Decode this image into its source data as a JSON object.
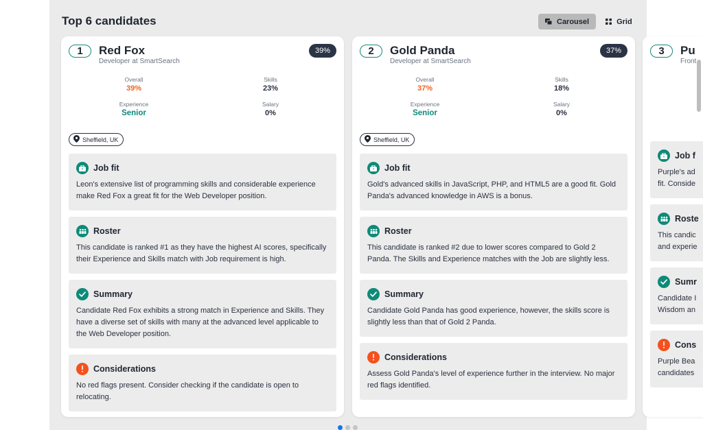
{
  "header": {
    "title": "Top 6 candidates",
    "view_carousel": "Carousel",
    "view_grid": "Grid"
  },
  "candidates": [
    {
      "rank": "1",
      "name": "Red Fox",
      "role": "Developer at SmartSearch",
      "score": "39%",
      "overall_label": "Overall",
      "overall": "39%",
      "skills_label": "Skills",
      "skills": "23%",
      "experience_label": "Experience",
      "experience": "Senior",
      "salary_label": "Salary",
      "salary": "0%",
      "location": "Sheffield, UK",
      "sections": [
        {
          "title": "Job fit",
          "icon": "briefcase-icon",
          "text": "Leon's extensive list of programming skills and considerable experience make Red Fox a great fit for the Web Developer position."
        },
        {
          "title": "Roster",
          "icon": "roster-icon",
          "text": "This candidate is ranked #1 as they have the highest AI scores, specifically their Experience and Skills match with Job requirement is high."
        },
        {
          "title": "Summary",
          "icon": "check-icon",
          "text": "Candidate Red Fox exhibits a strong match in Experience and Skills. They have a diverse set of skills with many at the advanced level applicable to the Web Developer position."
        },
        {
          "title": "Considerations",
          "icon": "alert-icon",
          "text": "No red flags present. Consider checking if the candidate is open to relocating."
        }
      ]
    },
    {
      "rank": "2",
      "name": "Gold Panda",
      "role": "Developer at SmartSearch",
      "score": "37%",
      "overall_label": "Overall",
      "overall": "37%",
      "skills_label": "Skills",
      "skills": "18%",
      "experience_label": "Experience",
      "experience": "Senior",
      "salary_label": "Salary",
      "salary": "0%",
      "location": "Sheffield, UK",
      "sections": [
        {
          "title": "Job fit",
          "icon": "briefcase-icon",
          "text": "Gold's advanced skills in JavaScript, PHP, and HTML5 are a good fit. Gold Panda's advanced knowledge in AWS is a bonus."
        },
        {
          "title": "Roster",
          "icon": "roster-icon",
          "text": "This candidate is ranked #2 due to lower scores compared to Gold 2 Panda. The Skills and Experience matches with the Job are slightly less."
        },
        {
          "title": "Summary",
          "icon": "check-icon",
          "text": "Candidate Gold Panda has good experience, however, the skills score is slightly less than that of Gold 2 Panda."
        },
        {
          "title": "Considerations",
          "icon": "alert-icon",
          "text": "Assess Gold Panda's level of experience further in the interview. No major red flags identified."
        }
      ]
    },
    {
      "rank": "3",
      "name_partial": "Pu",
      "role_partial": "Front",
      "sections": [
        {
          "title": "Job f",
          "icon": "briefcase-icon",
          "line1": "Purple's ad",
          "line2": "fit. Conside"
        },
        {
          "title": "Roste",
          "icon": "roster-icon",
          "line1": "This candic",
          "line2": "and experie"
        },
        {
          "title": "Sumr",
          "icon": "check-icon",
          "line1": "Candidate I",
          "line2": "Wisdom an"
        },
        {
          "title": "Cons",
          "icon": "alert-icon",
          "line1": "Purple Bea",
          "line2": "candidates"
        }
      ]
    }
  ],
  "colors": {
    "accent_teal": "#0e8a78",
    "alert_orange": "#f4511e",
    "overall_orange": "#f26322",
    "badge_dark": "#2b3446",
    "dot_active": "#1a73e8"
  }
}
